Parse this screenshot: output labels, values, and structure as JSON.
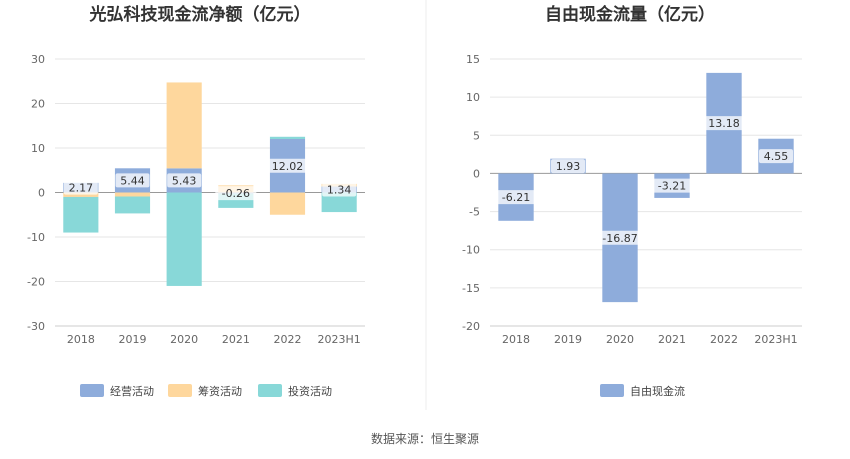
{
  "chart_data": [
    {
      "type": "bar",
      "stacked": true,
      "title": "光弘科技现金流净额（亿元）",
      "categories": [
        "2018",
        "2019",
        "2020",
        "2021",
        "2022",
        "2023H1"
      ],
      "ylim": [
        -30,
        30
      ],
      "yticks": [
        30,
        20,
        10,
        0,
        -10,
        -20,
        -30
      ],
      "series": [
        {
          "name": "经营活动",
          "color": "#8eacdb",
          "values": [
            2.17,
            5.44,
            5.43,
            -0.26,
            12.02,
            1.34
          ]
        },
        {
          "name": "筹资活动",
          "color": "#fed79d",
          "values": [
            -1.0,
            -0.9,
            19.3,
            1.6,
            -5.0,
            0.6
          ]
        },
        {
          "name": "投资活动",
          "color": "#88d8d8",
          "values": [
            -8.0,
            -3.8,
            -21.0,
            -3.2,
            0.5,
            -4.4
          ]
        }
      ],
      "data_labels": [
        "2.17",
        "5.44",
        "5.43",
        "-0.26",
        "12.02",
        "1.34"
      ],
      "legend": "bottom"
    },
    {
      "type": "bar",
      "title": "自由现金流量（亿元）",
      "categories": [
        "2018",
        "2019",
        "2020",
        "2021",
        "2022",
        "2023H1"
      ],
      "ylim": [
        -20,
        15
      ],
      "yticks": [
        15,
        10,
        5,
        0,
        -5,
        -10,
        -15,
        -20
      ],
      "series": [
        {
          "name": "自由现金流",
          "color": "#8eacdb",
          "values": [
            -6.21,
            1.93,
            -16.87,
            -3.21,
            13.18,
            4.55
          ]
        }
      ],
      "data_labels": [
        "-6.21",
        "1.93",
        "-16.87",
        "-3.21",
        "13.18",
        "4.55"
      ],
      "legend": "bottom"
    }
  ],
  "source": "数据来源：恒生聚源"
}
